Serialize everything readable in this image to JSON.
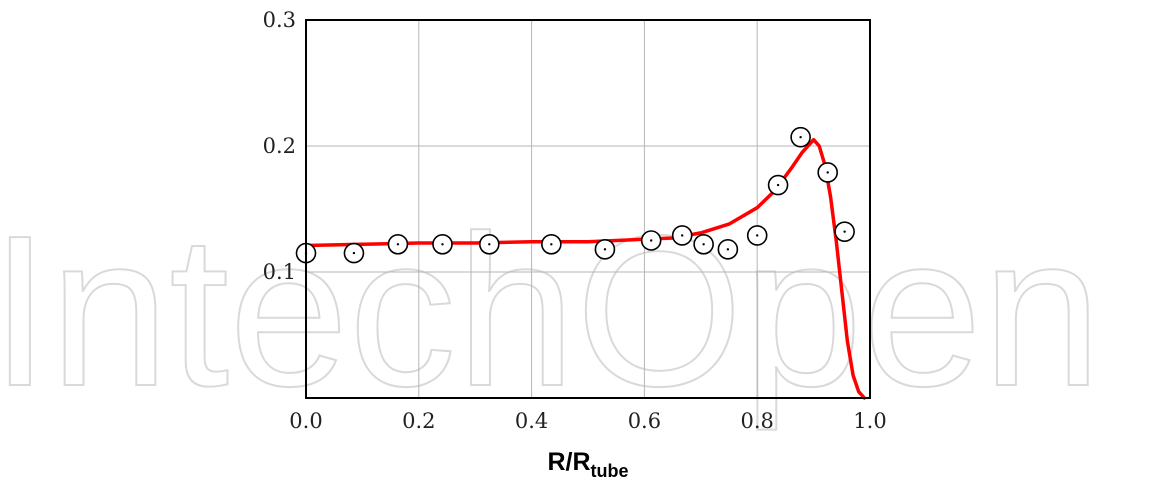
{
  "watermark": "IntechOpen",
  "chart_data": {
    "type": "scatter",
    "xlabel_main": "R/R",
    "xlabel_sub": "tube",
    "ylabel": "",
    "title": "",
    "xlim": [
      0.0,
      1.0
    ],
    "ylim": [
      0.0,
      0.3
    ],
    "xticks": [
      0.0,
      0.2,
      0.4,
      0.6,
      0.8,
      1.0
    ],
    "xtick_labels": [
      "0.0",
      "0.2",
      "0.4",
      "0.6",
      "0.8",
      "1.0"
    ],
    "yticks": [
      0.1,
      0.2,
      0.3
    ],
    "ytick_labels": [
      "0.1",
      "0.2",
      "0.3"
    ],
    "grid": true,
    "legend": "none",
    "series": [
      {
        "kind": "markers",
        "marker": "open-circle-dot",
        "color": "#000000",
        "points": [
          [
            0.0,
            0.115
          ],
          [
            0.085,
            0.115
          ],
          [
            0.163,
            0.122
          ],
          [
            0.242,
            0.122
          ],
          [
            0.325,
            0.122
          ],
          [
            0.435,
            0.122
          ],
          [
            0.53,
            0.118
          ],
          [
            0.612,
            0.125
          ],
          [
            0.667,
            0.129
          ],
          [
            0.705,
            0.122
          ],
          [
            0.748,
            0.118
          ],
          [
            0.8,
            0.129
          ],
          [
            0.837,
            0.169
          ],
          [
            0.877,
            0.207
          ],
          [
            0.925,
            0.179
          ],
          [
            0.955,
            0.132
          ]
        ]
      },
      {
        "kind": "line",
        "color": "#ff0000",
        "points": [
          [
            0.0,
            0.121
          ],
          [
            0.1,
            0.122
          ],
          [
            0.2,
            0.123
          ],
          [
            0.3,
            0.123
          ],
          [
            0.4,
            0.124
          ],
          [
            0.5,
            0.124
          ],
          [
            0.6,
            0.126
          ],
          [
            0.65,
            0.127
          ],
          [
            0.7,
            0.131
          ],
          [
            0.75,
            0.138
          ],
          [
            0.8,
            0.151
          ],
          [
            0.83,
            0.164
          ],
          [
            0.86,
            0.182
          ],
          [
            0.88,
            0.195
          ],
          [
            0.9,
            0.205
          ],
          [
            0.91,
            0.2
          ],
          [
            0.92,
            0.185
          ],
          [
            0.93,
            0.16
          ],
          [
            0.94,
            0.125
          ],
          [
            0.95,
            0.085
          ],
          [
            0.96,
            0.045
          ],
          [
            0.97,
            0.018
          ],
          [
            0.98,
            0.005
          ],
          [
            0.99,
            0.0
          ]
        ]
      }
    ]
  }
}
